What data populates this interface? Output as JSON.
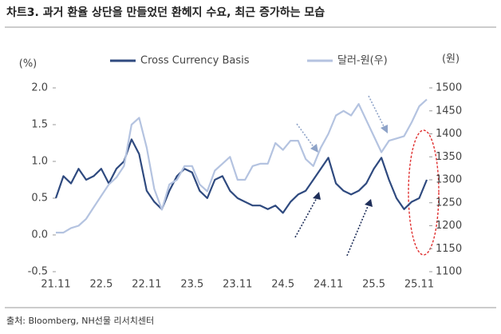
{
  "chart_data": {
    "type": "line",
    "title": "차트3. 과거 환율 상단을 만들었던 환헤지 수요, 최근 증가하는 모습",
    "source": "출처: Bloomberg, NH선물 리서치센터",
    "y_label": "(%)",
    "y2_label": "(원)",
    "x": [
      "21.11",
      null,
      null,
      null,
      null,
      null,
      "22.5",
      null,
      null,
      null,
      null,
      null,
      "22.11",
      null,
      null,
      null,
      null,
      null,
      "23.5",
      null,
      null,
      null,
      null,
      null,
      "23.11",
      null,
      null,
      null,
      null,
      null,
      "24.5",
      null,
      null,
      null,
      null,
      null,
      "24.11",
      null,
      null,
      null,
      null,
      null,
      "25.5",
      null,
      null,
      null,
      null,
      null,
      "25.11",
      null
    ],
    "series": [
      {
        "name": "Cross Currency Basis",
        "color": "#2f4a7f",
        "values": [
          0.5,
          0.8,
          0.7,
          0.9,
          0.75,
          0.8,
          0.9,
          0.7,
          0.9,
          1.0,
          1.3,
          1.1,
          0.6,
          0.45,
          0.35,
          0.6,
          0.8,
          0.9,
          0.85,
          0.6,
          0.5,
          0.75,
          0.8,
          0.6,
          0.5,
          0.45,
          0.4,
          0.4,
          0.35,
          0.4,
          0.3,
          0.45,
          0.55,
          0.6,
          0.75,
          0.9,
          1.05,
          0.7,
          0.6,
          0.55,
          0.6,
          0.7,
          0.9,
          1.05,
          0.75,
          0.5,
          0.35,
          0.45,
          0.5,
          0.75
        ]
      },
      {
        "name": "달러-원(우)",
        "color": "#b4c3e0",
        "axis": "y2",
        "values": [
          1185,
          1185,
          1195,
          1200,
          1215,
          1240,
          1265,
          1290,
          1305,
          1330,
          1420,
          1435,
          1370,
          1280,
          1235,
          1290,
          1300,
          1330,
          1330,
          1290,
          1275,
          1320,
          1335,
          1350,
          1300,
          1300,
          1330,
          1335,
          1335,
          1380,
          1365,
          1385,
          1385,
          1345,
          1330,
          1370,
          1400,
          1440,
          1450,
          1440,
          1465,
          1430,
          1395,
          1360,
          1385,
          1390,
          1395,
          1425,
          1460,
          1475
        ]
      }
    ],
    "ylim": [
      -0.5,
      2.0
    ],
    "yticks": [
      -0.5,
      {
        "value": 0,
        "label": "0.0"
      },
      0.5,
      {
        "value": 1,
        "label": "1.0"
      },
      1.5,
      {
        "value": 2,
        "label": "2.0"
      }
    ],
    "y2lim": [
      1100,
      1500
    ],
    "y2ticks": [
      1100,
      1150,
      1200,
      1250,
      1300,
      1350,
      1400,
      1450,
      1500
    ],
    "grid": false
  }
}
